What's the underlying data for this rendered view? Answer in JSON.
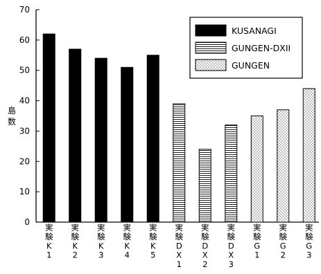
{
  "chart_data": {
    "type": "bar",
    "ylabel": "島数",
    "ylim": [
      0,
      70
    ],
    "yticks": [
      "0",
      "10",
      "20",
      "30",
      "40",
      "50",
      "60",
      "70"
    ],
    "categories": [
      [
        "実",
        "験",
        "K",
        "1"
      ],
      [
        "実",
        "験",
        "K",
        "2"
      ],
      [
        "実",
        "験",
        "K",
        "3"
      ],
      [
        "実",
        "験",
        "K",
        "4"
      ],
      [
        "実",
        "験",
        "K",
        "5"
      ],
      [
        "実",
        "験",
        "D",
        "X",
        "1"
      ],
      [
        "実",
        "験",
        "D",
        "X",
        "2"
      ],
      [
        "実",
        "験",
        "D",
        "X",
        "3"
      ],
      [
        "実",
        "験",
        "G",
        "1"
      ],
      [
        "実",
        "験",
        "G",
        "2"
      ],
      [
        "実",
        "験",
        "G",
        "3"
      ]
    ],
    "series": [
      {
        "name": "KUSANAGI",
        "fill": "solid",
        "values": [
          62,
          57,
          54,
          51,
          55,
          null,
          null,
          null,
          null,
          null,
          null
        ]
      },
      {
        "name": "GUNGEN-DXII",
        "fill": "horizontal-stripes",
        "values": [
          null,
          null,
          null,
          null,
          null,
          39,
          24,
          32,
          null,
          null,
          null
        ]
      },
      {
        "name": "GUNGEN",
        "fill": "dots",
        "values": [
          null,
          null,
          null,
          null,
          null,
          null,
          null,
          null,
          35,
          37,
          44
        ]
      }
    ],
    "legend_position": "top-right",
    "grid": false,
    "colors": {
      "bar": "#000000",
      "background": "#ffffff"
    }
  }
}
